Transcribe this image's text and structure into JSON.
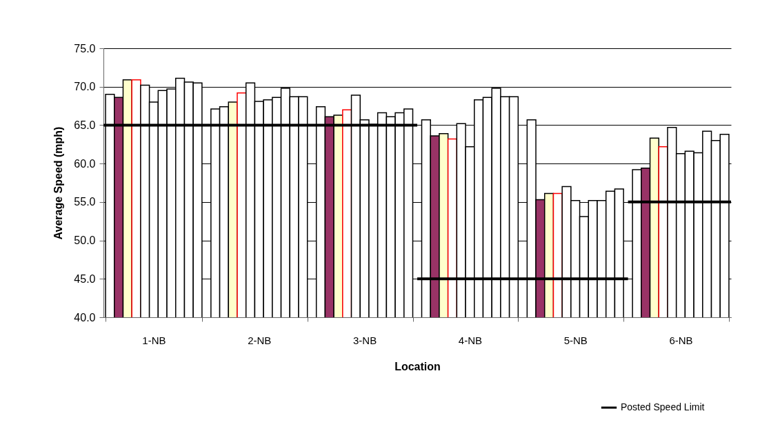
{
  "chart_data": {
    "type": "bar",
    "xlabel": "Location",
    "ylabel": "Average Speed (mph)",
    "categories": [
      "1-NB",
      "2-NB",
      "3-NB",
      "4-NB",
      "5-NB",
      "6-NB"
    ],
    "series": [
      {
        "color": "#ffffff",
        "values": [
          69.0,
          67.1,
          67.4,
          65.7,
          65.7,
          59.2
        ]
      },
      {
        "colors": [
          "#993366",
          "#ffffff",
          "#993366",
          "#993366",
          "#993366",
          "#993366"
        ],
        "values": [
          68.6,
          67.4,
          66.1,
          63.6,
          55.3,
          59.4
        ]
      },
      {
        "color": "#ffffcc",
        "values": [
          70.9,
          68.0,
          66.3,
          63.9,
          56.1,
          63.3
        ]
      },
      {
        "color": "#ff0000",
        "values": [
          70.9,
          69.2,
          67.0,
          63.2,
          56.1,
          62.2
        ]
      },
      {
        "color": "#ffffff",
        "values": [
          70.2,
          70.5,
          68.9,
          65.2,
          57.0,
          64.7
        ]
      },
      {
        "color": "#ffffff",
        "values": [
          68.0,
          68.1,
          65.7,
          62.2,
          55.2,
          61.3
        ]
      },
      {
        "color": "#ffffff",
        "values": [
          69.5,
          68.3,
          65.1,
          68.3,
          53.1,
          61.6
        ]
      },
      {
        "color": "#ffffff",
        "values": [
          69.7,
          68.6,
          66.6,
          68.6,
          55.2,
          61.4
        ]
      },
      {
        "color": "#ffffff",
        "values": [
          71.1,
          69.8,
          66.1,
          69.8,
          55.2,
          64.2
        ]
      },
      {
        "color": "#ffffff",
        "values": [
          70.6,
          68.7,
          66.6,
          68.7,
          56.4,
          63.0
        ]
      },
      {
        "color": "#ffffff",
        "values": [
          70.5,
          68.7,
          67.1,
          68.7,
          56.7,
          63.8
        ]
      },
      {
        "name": "Posted Speed Limit",
        "type": "step",
        "color": "#000000",
        "values": [
          65,
          65,
          65,
          45,
          45,
          55
        ]
      }
    ],
    "ylim": [
      40,
      75
    ],
    "yticks": [
      {
        "value": 40,
        "label": "40.0"
      },
      {
        "value": 45,
        "label": "45.0"
      },
      {
        "value": 50,
        "label": "50.0"
      },
      {
        "value": 55,
        "label": "55.0"
      },
      {
        "value": 60,
        "label": "60.0"
      },
      {
        "value": 65,
        "label": "65.0"
      },
      {
        "value": 70,
        "label": "70.0"
      },
      {
        "value": 75,
        "label": "75.0"
      }
    ],
    "grid": "y",
    "legend": "bottom right"
  }
}
